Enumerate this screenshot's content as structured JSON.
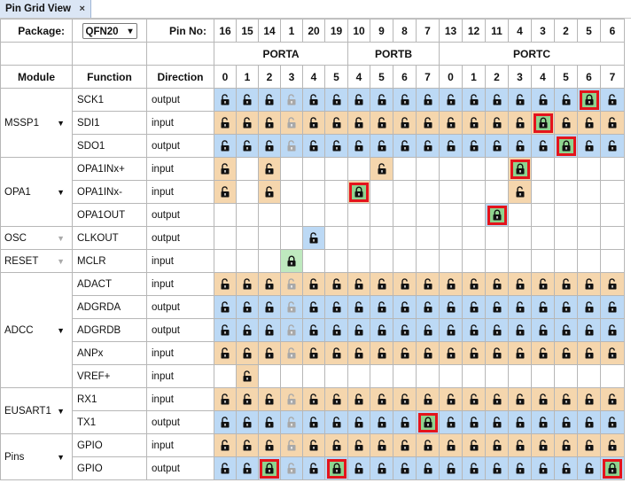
{
  "tab": {
    "title": "Pin Grid View",
    "close": "×"
  },
  "header": {
    "package_label": "Package:",
    "package_value": "QFN20",
    "pin_no_label": "Pin No:",
    "module_label": "Module",
    "function_label": "Function",
    "direction_label": "Direction"
  },
  "ports": [
    {
      "name": "PORTA",
      "cols": 6
    },
    {
      "name": "PORTB",
      "cols": 4
    },
    {
      "name": "PORTC",
      "cols": 8
    }
  ],
  "pins": [
    "16",
    "15",
    "14",
    "1",
    "20",
    "19",
    "10",
    "9",
    "8",
    "7",
    "13",
    "12",
    "11",
    "4",
    "3",
    "2",
    "5",
    "6"
  ],
  "bits": [
    "0",
    "1",
    "2",
    "3",
    "4",
    "5",
    "4",
    "5",
    "6",
    "7",
    "0",
    "1",
    "2",
    "3",
    "4",
    "5",
    "6",
    "7"
  ],
  "colors": {
    "output": "#bcd9f5",
    "input": "#f5d6ad",
    "assigned": "#8fd48f",
    "highlight": "#e4141c"
  },
  "modules": [
    {
      "name": "MSSP1",
      "arrow": "dark",
      "rows": [
        {
          "function": "SCK1",
          "direction": "output",
          "cells": "LLLULLLLLLLLLLLLHL"
        },
        {
          "function": "SDI1",
          "direction": "input",
          "cells": "LLLULLLLLLLLLLHLLL"
        },
        {
          "function": "SDO1",
          "direction": "output",
          "cells": "LLLULLLLLLLLLLLHLL"
        }
      ]
    },
    {
      "name": "OPA1",
      "arrow": "dark",
      "rows": [
        {
          "function": "OPA1INx+",
          "direction": "input",
          "cells": "L.L....L.....H...."
        },
        {
          "function": "OPA1INx-",
          "direction": "input",
          "cells": "L.L...H......L...."
        },
        {
          "function": "OPA1OUT",
          "direction": "output",
          "cells": "............H....."
        }
      ]
    },
    {
      "name": "OSC",
      "arrow": "dim",
      "rows": [
        {
          "function": "CLKOUT",
          "direction": "output",
          "cells": "....L............."
        }
      ]
    },
    {
      "name": "RESET",
      "arrow": "dim",
      "rows": [
        {
          "function": "MCLR",
          "direction": "input",
          "cells": "...G.............."
        }
      ]
    },
    {
      "name": "ADCC",
      "arrow": "dark",
      "rows": [
        {
          "function": "ADACT",
          "direction": "input",
          "cells": "LLLULLLLLLLLLLLLLL"
        },
        {
          "function": "ADGRDA",
          "direction": "output",
          "cells": "LLLULLLLLLLLLLLLLL"
        },
        {
          "function": "ADGRDB",
          "direction": "output",
          "cells": "LLLULLLLLLLLLLLLLL"
        },
        {
          "function": "ANPx",
          "direction": "input",
          "cells": "LLLULLLLLLLLLLLLLL"
        },
        {
          "function": "VREF+",
          "direction": "input",
          "cells": ".L................"
        }
      ]
    },
    {
      "name": "EUSART1",
      "arrow": "dark",
      "rows": [
        {
          "function": "RX1",
          "direction": "input",
          "cells": "LLLULLLLLLLLLLLLLL"
        },
        {
          "function": "TX1",
          "direction": "output",
          "cells": "LLLULLLLLHLLLLLLLL"
        }
      ]
    },
    {
      "name": "Pins",
      "arrow": "dark",
      "rows": [
        {
          "function": "GPIO",
          "direction": "input",
          "cells": "LLLULLLLLLLLLLLLLL"
        },
        {
          "function": "GPIO",
          "direction": "output",
          "cells": "LLHULHLLLLLLLLLLLH"
        }
      ]
    }
  ]
}
